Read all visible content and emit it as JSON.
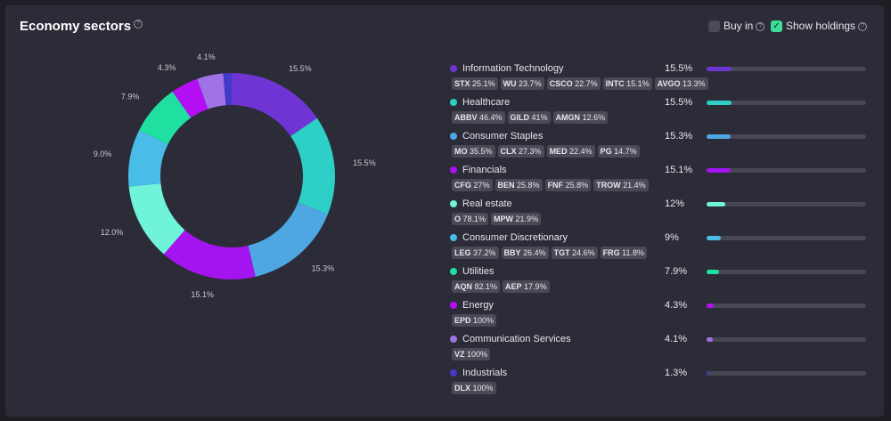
{
  "header": {
    "title": "Economy sectors",
    "title_help": "?",
    "buy_in_label": "Buy in",
    "buy_in_help": "?",
    "buy_in_checked": false,
    "show_holdings_label": "Show holdings",
    "show_holdings_help": "?",
    "show_holdings_checked": true
  },
  "chart_data": {
    "type": "pie",
    "donut": true,
    "categories": [
      "Information Technology",
      "Healthcare",
      "Consumer Staples",
      "Financials",
      "Real estate",
      "Consumer Discretionary",
      "Utilities",
      "Energy",
      "Communication Services",
      "Industrials"
    ],
    "values": [
      15.5,
      15.5,
      15.3,
      15.1,
      12.0,
      9.0,
      7.9,
      4.3,
      4.1,
      1.3
    ],
    "labels": [
      "15.5%",
      "15.5%",
      "15.3%",
      "15.1%",
      "12.0%",
      "9.0%",
      "7.9%",
      "4.3%",
      "4.1%",
      ""
    ],
    "colors": [
      "#6f35d4",
      "#2ecfc6",
      "#4ea6e3",
      "#a414f0",
      "#6ff3d9",
      "#49bde8",
      "#1fe0a0",
      "#b40ff4",
      "#9f73e6",
      "#4139c7"
    ]
  },
  "sectors": [
    {
      "name": "Information Technology",
      "pct": "15.5%",
      "value": 15.5,
      "color": "#6f35d4",
      "holdings": [
        {
          "t": "STX",
          "p": "25.1%"
        },
        {
          "t": "WU",
          "p": "23.7%"
        },
        {
          "t": "CSCO",
          "p": "22.7%"
        },
        {
          "t": "INTC",
          "p": "15.1%"
        },
        {
          "t": "AVGO",
          "p": "13.3%"
        }
      ]
    },
    {
      "name": "Healthcare",
      "pct": "15.5%",
      "value": 15.5,
      "color": "#2ecfc6",
      "holdings": [
        {
          "t": "ABBV",
          "p": "46.4%"
        },
        {
          "t": "GILD",
          "p": "41%"
        },
        {
          "t": "AMGN",
          "p": "12.6%"
        }
      ]
    },
    {
      "name": "Consumer Staples",
      "pct": "15.3%",
      "value": 15.3,
      "color": "#4ea6e3",
      "holdings": [
        {
          "t": "MO",
          "p": "35.5%"
        },
        {
          "t": "CLX",
          "p": "27.3%"
        },
        {
          "t": "MED",
          "p": "22.4%"
        },
        {
          "t": "PG",
          "p": "14.7%"
        }
      ]
    },
    {
      "name": "Financials",
      "pct": "15.1%",
      "value": 15.1,
      "color": "#a414f0",
      "holdings": [
        {
          "t": "CFG",
          "p": "27%"
        },
        {
          "t": "BEN",
          "p": "25.8%"
        },
        {
          "t": "FNF",
          "p": "25.8%"
        },
        {
          "t": "TROW",
          "p": "21.4%"
        }
      ]
    },
    {
      "name": "Real estate",
      "pct": "12%",
      "value": 12,
      "color": "#6ff3d9",
      "holdings": [
        {
          "t": "O",
          "p": "78.1%"
        },
        {
          "t": "MPW",
          "p": "21.9%"
        }
      ]
    },
    {
      "name": "Consumer Discretionary",
      "pct": "9%",
      "value": 9,
      "color": "#49bde8",
      "holdings": [
        {
          "t": "LEG",
          "p": "37.2%"
        },
        {
          "t": "BBY",
          "p": "26.4%"
        },
        {
          "t": "TGT",
          "p": "24.6%"
        },
        {
          "t": "FRG",
          "p": "11.8%"
        }
      ]
    },
    {
      "name": "Utilities",
      "pct": "7.9%",
      "value": 7.9,
      "color": "#1fe0a0",
      "holdings": [
        {
          "t": "AQN",
          "p": "82.1%"
        },
        {
          "t": "AEP",
          "p": "17.9%"
        }
      ]
    },
    {
      "name": "Energy",
      "pct": "4.3%",
      "value": 4.3,
      "color": "#b40ff4",
      "holdings": [
        {
          "t": "EPD",
          "p": "100%"
        }
      ]
    },
    {
      "name": "Communication Services",
      "pct": "4.1%",
      "value": 4.1,
      "color": "#9f73e6",
      "holdings": [
        {
          "t": "VZ",
          "p": "100%"
        }
      ]
    },
    {
      "name": "Industrials",
      "pct": "1.3%",
      "value": 1.3,
      "color": "#4139c7",
      "holdings": [
        {
          "t": "DLX",
          "p": "100%"
        }
      ]
    }
  ]
}
